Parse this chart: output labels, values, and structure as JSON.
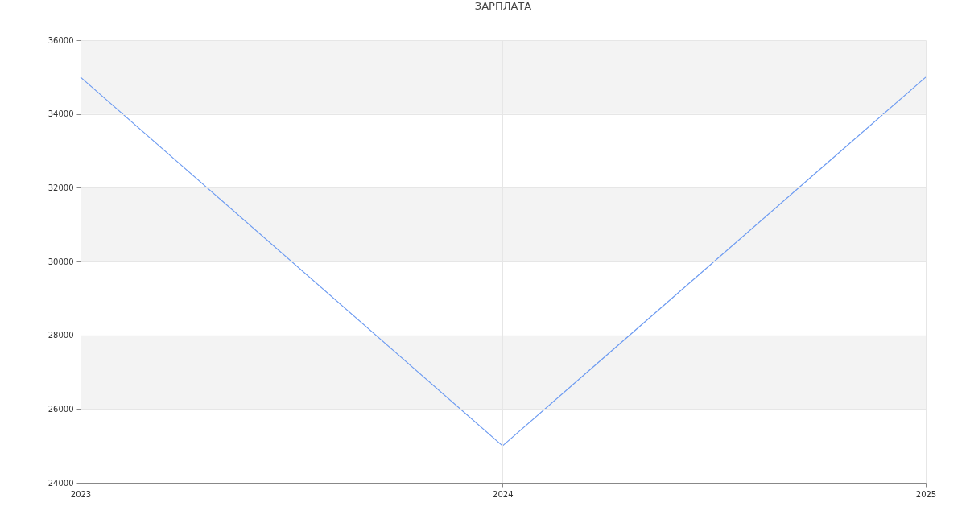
{
  "chart_data": {
    "type": "line",
    "title": "ЗАРПЛАТА",
    "x": [
      "2023",
      "2024",
      "2025"
    ],
    "series": [
      {
        "color": "#6d9bf1",
        "values": [
          35000,
          25000,
          35000
        ]
      }
    ],
    "xlim": [
      "2023",
      "2025"
    ],
    "xticks": [
      "2023",
      "2024",
      "2025"
    ],
    "ylim": [
      24000,
      36000
    ],
    "yticks": [
      24000,
      26000,
      28000,
      30000,
      32000,
      34000,
      36000
    ],
    "bands": [
      {
        "axis": "y",
        "from": 26000,
        "to": 28000,
        "color": "#f3f3f3"
      },
      {
        "axis": "y",
        "from": 30000,
        "to": 32000,
        "color": "#f3f3f3"
      },
      {
        "axis": "y",
        "from": 34000,
        "to": 36000,
        "color": "#f3f3f3"
      }
    ],
    "grid": true,
    "marker": "none",
    "line_style": "solid"
  }
}
